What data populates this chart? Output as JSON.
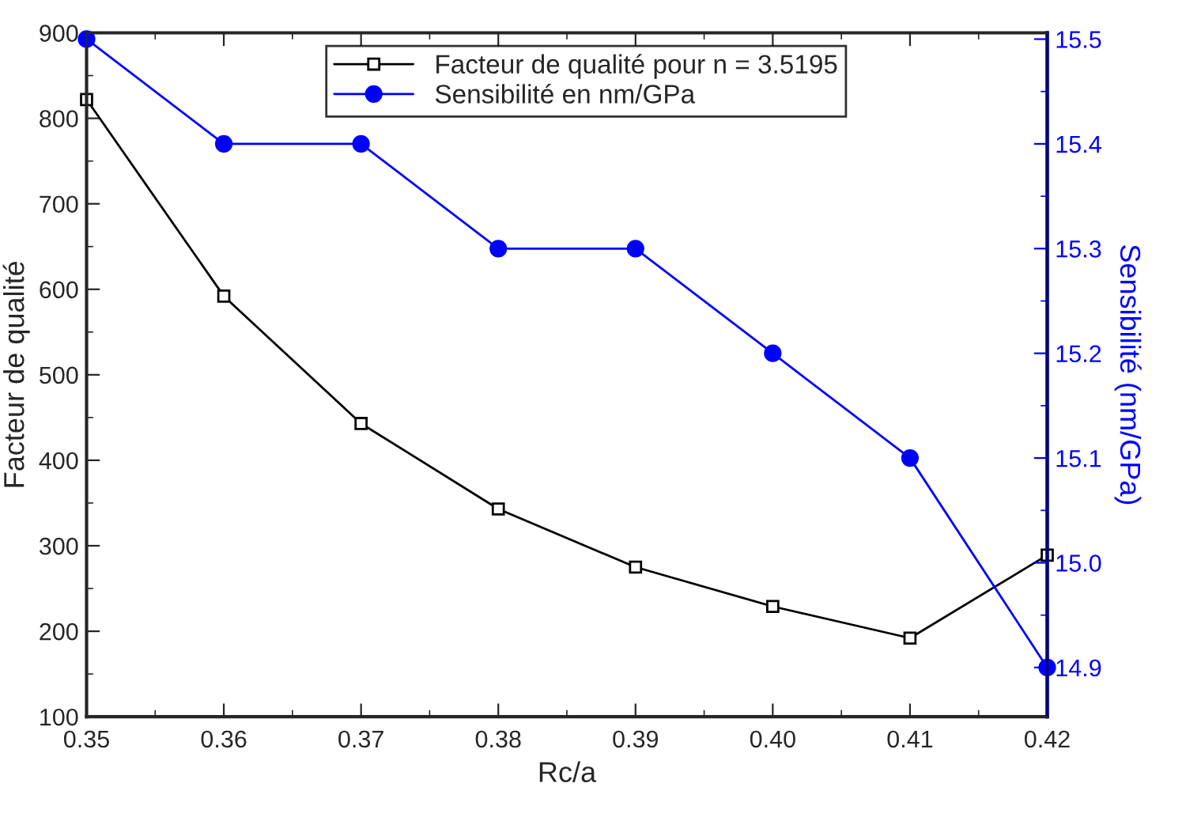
{
  "chart_data": {
    "type": "line",
    "xlabel": "Rc/a",
    "ylabel": "Facteur de qualité",
    "y2label": "Sensibilité (nm/GPa)",
    "x": [
      0.35,
      0.36,
      0.37,
      0.38,
      0.39,
      0.4,
      0.41,
      0.42
    ],
    "series": [
      {
        "name": "Facteur de qualité pour n = 3.5195",
        "color": "#000000",
        "marker": "square",
        "values": [
          822,
          592,
          443,
          343,
          275,
          229,
          192,
          289
        ]
      },
      {
        "name": "Sensibilité en nm/GPa",
        "color": "#0000ff",
        "marker": "circle",
        "axis": "y2",
        "values": [
          15.5,
          15.4,
          15.4,
          15.3,
          15.3,
          15.2,
          15.1,
          14.9
        ]
      }
    ],
    "xlim": [
      0.35,
      0.42
    ],
    "xticks": [
      {
        "value": 0.35,
        "label": "0.35"
      },
      {
        "value": 0.36,
        "label": "0.36"
      },
      {
        "value": 0.37,
        "label": "0.37"
      },
      {
        "value": 0.38,
        "label": "0.38"
      },
      {
        "value": 0.39,
        "label": "0.39"
      },
      {
        "value": 0.4,
        "label": "0.40"
      },
      {
        "value": 0.41,
        "label": "0.41"
      },
      {
        "value": 0.42,
        "label": "0.42"
      }
    ],
    "ylim": [
      100,
      900
    ],
    "yticks": [
      100,
      200,
      300,
      400,
      500,
      600,
      700,
      800,
      900
    ],
    "y2lim": [
      14.853,
      15.506
    ],
    "y2ticks": [
      {
        "value": 14.9,
        "label": "14.9"
      },
      {
        "value": 15.0,
        "label": "15.0"
      },
      {
        "value": 15.1,
        "label": "15.1"
      },
      {
        "value": 15.2,
        "label": "15.2"
      },
      {
        "value": 15.3,
        "label": "15.3"
      },
      {
        "value": 15.4,
        "label": "15.4"
      },
      {
        "value": 15.5,
        "label": "15.5"
      }
    ],
    "grid": false,
    "legend": "top",
    "line_style": "solid"
  }
}
